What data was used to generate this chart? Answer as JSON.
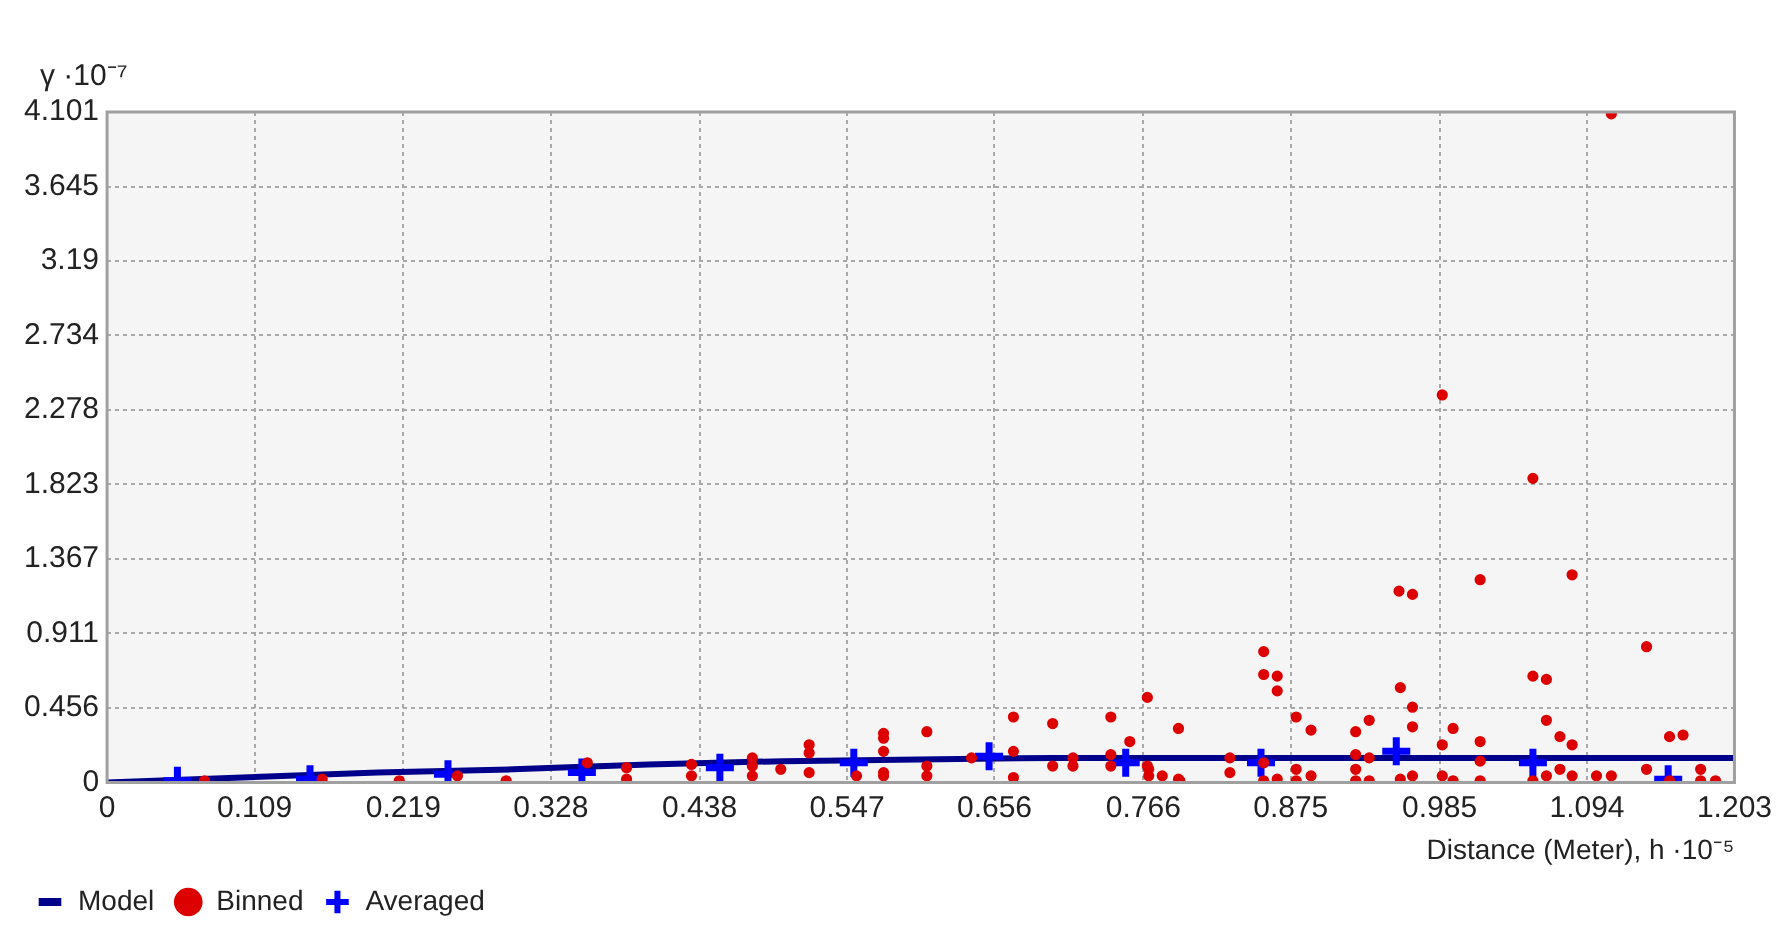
{
  "chart_data": {
    "type": "scatter",
    "ylabel": "γ ·10⁻⁷",
    "xlabel": "Distance (Meter), h ·10⁻⁵",
    "xlim": [
      0,
      1.203
    ],
    "ylim": [
      0,
      4.101
    ],
    "xticks": [
      0,
      0.109,
      0.219,
      0.328,
      0.438,
      0.547,
      0.656,
      0.766,
      0.875,
      0.985,
      1.094,
      1.203
    ],
    "yticks": [
      0,
      0.456,
      0.911,
      1.367,
      1.823,
      2.278,
      2.734,
      3.19,
      3.645,
      4.101
    ],
    "grid": true,
    "legend": "bottom left",
    "line_style": "solid",
    "series": [
      {
        "name": "Model",
        "type": "line",
        "marker": "none",
        "color": "#00008b",
        "x": [
          0,
          0.1,
          0.2,
          0.3,
          0.4,
          0.5,
          0.6,
          0.7,
          0.8,
          1.203
        ],
        "values": [
          0,
          0.03,
          0.06,
          0.08,
          0.11,
          0.13,
          0.14,
          0.15,
          0.15,
          0.15
        ]
      },
      {
        "name": "Binned",
        "marker": "circle",
        "color": "#dd0000",
        "x": [
          0.072,
          0.159,
          0.216,
          0.259,
          0.295,
          0.355,
          0.384,
          0.384,
          0.432,
          0.432,
          0.477,
          0.477,
          0.477,
          0.498,
          0.519,
          0.519,
          0.519,
          0.554,
          0.574,
          0.574,
          0.574,
          0.574,
          0.574,
          0.606,
          0.606,
          0.606,
          0.639,
          0.67,
          0.67,
          0.67,
          0.699,
          0.699,
          0.714,
          0.714,
          0.742,
          0.742,
          0.742,
          0.756,
          0.769,
          0.769,
          0.78,
          0.792,
          0.792,
          0.793,
          0.77,
          0.77,
          0.83,
          0.83,
          0.855,
          0.855,
          0.855,
          0.855,
          0.865,
          0.865,
          0.865,
          0.879,
          0.879,
          0.879,
          0.89,
          0.89,
          0.923,
          0.923,
          0.923,
          0.923,
          0.933,
          0.933,
          0.933,
          0.955,
          0.956,
          0.956,
          0.965,
          0.965,
          0.965,
          0.965,
          0.987,
          0.987,
          0.987,
          0.995,
          0.995,
          1.015,
          1.015,
          1.015,
          1.015,
          1.054,
          1.054,
          1.054,
          1.064,
          1.064,
          1.064,
          1.074,
          1.074,
          1.083,
          1.083,
          1.083,
          1.101,
          1.112,
          1.112,
          1.138,
          1.138,
          1.155,
          1.155,
          1.165,
          1.178,
          1.178,
          1.189
        ],
        "values": [
          0.01,
          0.02,
          0.01,
          0.04,
          0.01,
          0.12,
          0.09,
          0.02,
          0.11,
          0.04,
          0.15,
          0.1,
          0.04,
          0.08,
          0.23,
          0.18,
          0.06,
          0.04,
          0.3,
          0.27,
          0.19,
          0.04,
          0.06,
          0.31,
          0.1,
          0.04,
          0.15,
          0.4,
          0.19,
          0.03,
          0.36,
          0.1,
          0.15,
          0.1,
          0.4,
          0.17,
          0.1,
          0.25,
          0.52,
          0.1,
          0.04,
          0.33,
          0.02,
          0.01,
          0.08,
          0.04,
          0.15,
          0.06,
          0.8,
          0.66,
          0.12,
          0.01,
          0.65,
          0.56,
          0.02,
          0.4,
          0.08,
          0.01,
          0.32,
          0.04,
          0.31,
          0.17,
          0.08,
          0.01,
          0.38,
          0.15,
          0.01,
          1.17,
          0.58,
          0.02,
          1.15,
          0.46,
          0.34,
          0.04,
          2.37,
          0.23,
          0.04,
          0.33,
          0.01,
          1.24,
          0.25,
          0.13,
          0.01,
          1.86,
          0.65,
          0.01,
          0.63,
          0.38,
          0.04,
          0.28,
          0.08,
          1.27,
          0.23,
          0.04,
          0.04,
          4.09,
          0.04,
          0.83,
          0.08,
          0.28,
          0.01,
          0.29,
          0.08,
          0.01,
          0.01
        ]
      },
      {
        "name": "Averaged",
        "marker": "cross",
        "color": "#0000ff",
        "x": [
          0.052,
          0.15,
          0.252,
          0.351,
          0.453,
          0.552,
          0.652,
          0.753,
          0.853,
          0.953,
          1.054,
          1.154
        ],
        "values": [
          0.01,
          0.02,
          0.05,
          0.06,
          0.09,
          0.12,
          0.16,
          0.12,
          0.12,
          0.19,
          0.12,
          0.02
        ]
      }
    ]
  }
}
